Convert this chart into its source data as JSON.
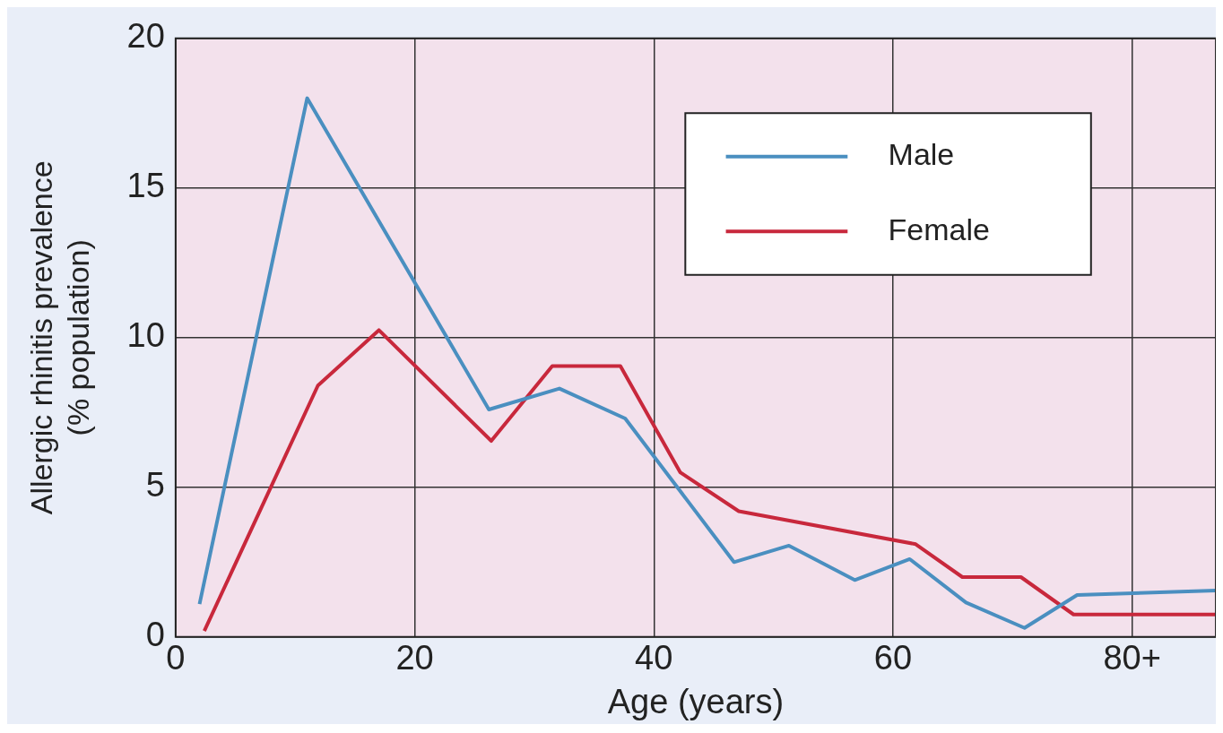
{
  "chart_data": {
    "type": "line",
    "xlabel": "Age (years)",
    "ylabel": "Allergic rhinitis prevalence\n(% population)",
    "xlim": [
      0,
      87
    ],
    "xticks": [
      0,
      20,
      40,
      60,
      {
        "value": 80,
        "label": "80+"
      }
    ],
    "ylim": [
      0,
      20
    ],
    "yticks": [
      0,
      5,
      10,
      15,
      20
    ],
    "grid": true,
    "legend": "top right",
    "marker": "none",
    "line_style": "solid",
    "series": [
      {
        "name": "Male",
        "color": "#4a8fc0",
        "x": [
          2,
          11,
          26.2,
          32.1,
          37.6,
          46.7,
          51.3,
          56.8,
          61.4,
          66.1,
          71,
          75.4,
          87
        ],
        "values": [
          1.1,
          18,
          7.6,
          8.3,
          7.3,
          2.5,
          3.05,
          1.9,
          2.6,
          1.15,
          0.3,
          1.4,
          1.55
        ]
      },
      {
        "name": "Female",
        "color": "#c8283c",
        "x": [
          2.4,
          11.9,
          17,
          26.4,
          31.5,
          37.2,
          42.2,
          47.1,
          61.9,
          65.8,
          70.7,
          75.1,
          87
        ],
        "values": [
          0.2,
          8.4,
          10.25,
          6.55,
          9.05,
          9.05,
          5.5,
          4.2,
          3.1,
          2,
          2,
          0.75,
          0.75
        ]
      }
    ]
  }
}
